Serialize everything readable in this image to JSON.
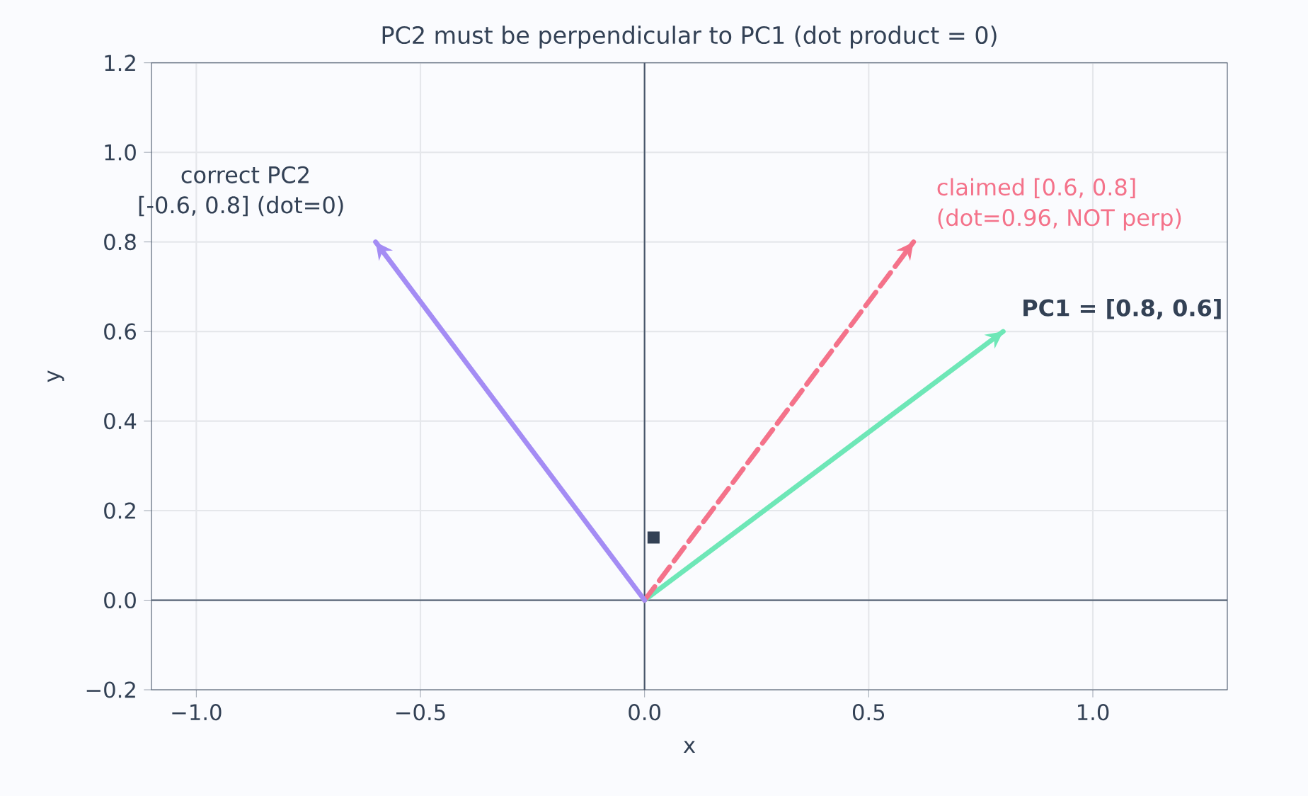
{
  "chart_data": {
    "type": "line",
    "title": "PC2 must be perpendicular to PC1 (dot product = 0)",
    "xlabel": "x",
    "ylabel": "y",
    "series": [
      {
        "x": [
          0,
          0.8
        ],
        "values": [
          0,
          0.6
        ],
        "color": "#6ee7b7",
        "line_style": "solid"
      },
      {
        "x": [
          0,
          0.6
        ],
        "values": [
          0,
          0.8
        ],
        "color": "#f4728a",
        "line_style": "dashed"
      },
      {
        "x": [
          0,
          -0.6
        ],
        "values": [
          0,
          0.8
        ],
        "color": "#a48cf4",
        "line_style": "solid"
      },
      {
        "type": "scatter",
        "x": [
          0.02
        ],
        "values": [
          0.14
        ],
        "color": "#334155",
        "marker": "square"
      }
    ],
    "annotations": [
      "PC1 = [0.8, 0.6]",
      "claimed [0.6, 0.8]",
      "(dot=0.96, NOT perp)",
      "correct PC2",
      "[-0.6, 0.8]  (dot=0)"
    ],
    "xlim": [
      -1.1,
      1.3
    ],
    "ylim": [
      -0.2,
      1.2
    ],
    "xticks": [
      {
        "value": -1,
        "label": "−1.0"
      },
      {
        "value": -0.5,
        "label": "−0.5"
      },
      {
        "value": 0,
        "label": "0.0"
      },
      {
        "value": 0.5,
        "label": "0.5"
      },
      {
        "value": 1,
        "label": "1.0"
      }
    ],
    "yticks": [
      {
        "value": -0.2,
        "label": "−0.2"
      },
      {
        "value": 0,
        "label": "0.0"
      },
      {
        "value": 0.2,
        "label": "0.2"
      },
      {
        "value": 0.4,
        "label": "0.4"
      },
      {
        "value": 0.6,
        "label": "0.6"
      },
      {
        "value": 0.8,
        "label": "0.8"
      },
      {
        "value": 1,
        "label": "1.0"
      },
      {
        "value": 1.2,
        "label": "1.2"
      }
    ],
    "grid": true
  }
}
